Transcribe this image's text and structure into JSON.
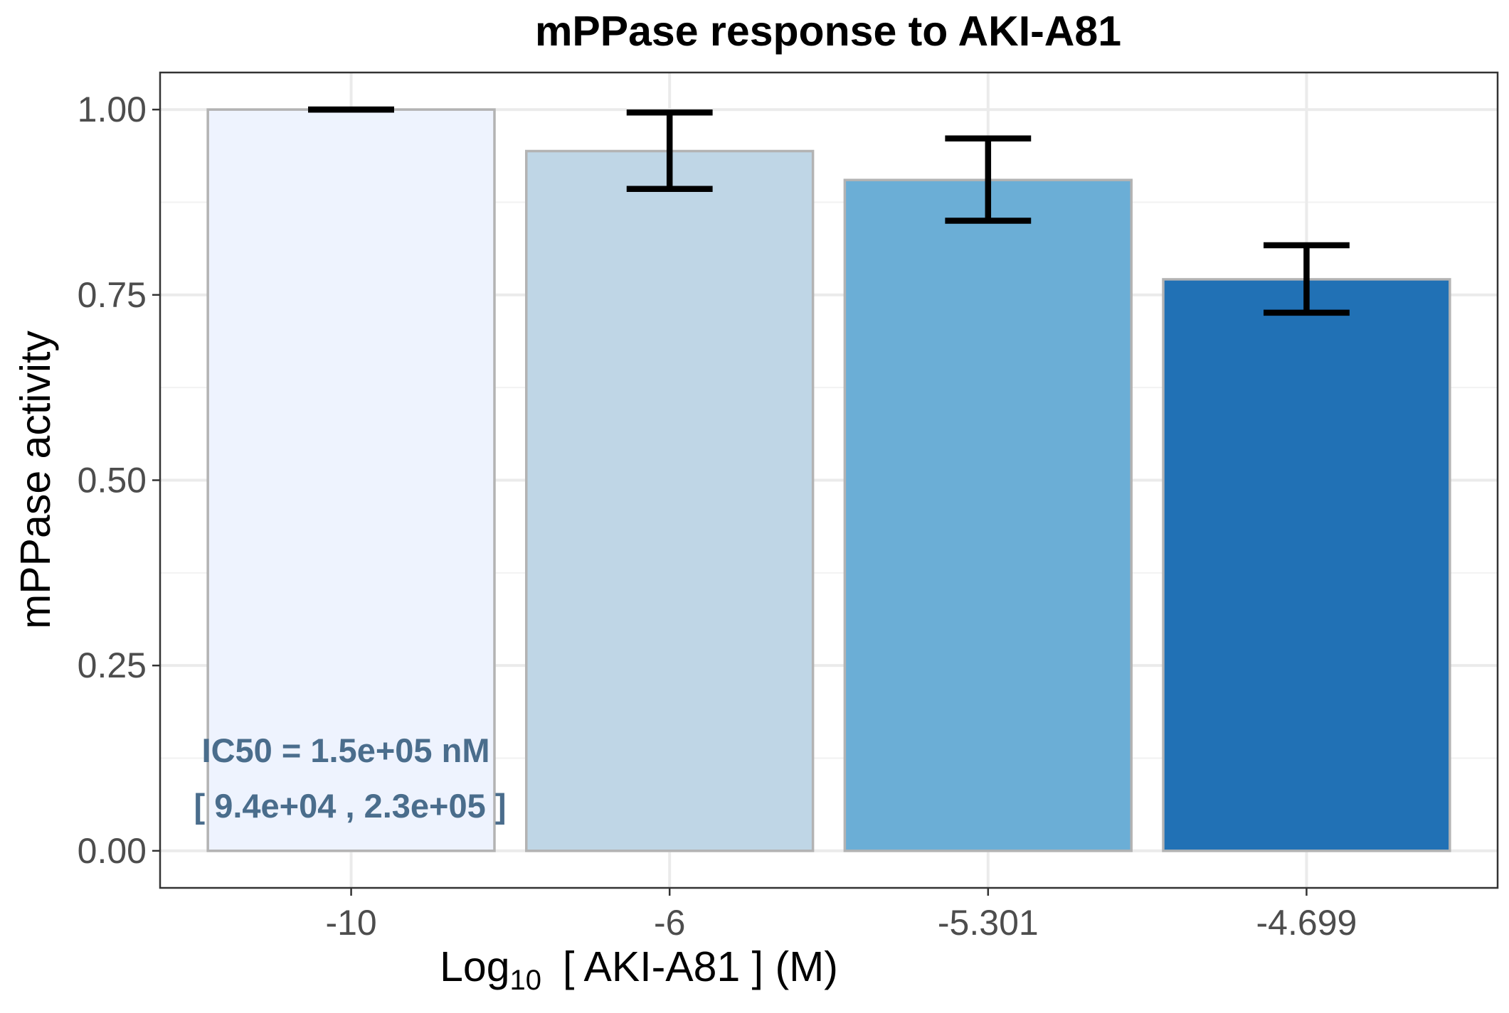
{
  "chart_data": {
    "type": "bar",
    "title": "mPPase response to AKI-A81",
    "xlabel": {
      "prefix": "Log",
      "subscript": "10",
      "suffix": "[ AKI-A81 ] (M)"
    },
    "ylabel": "mPPase activity",
    "categories": [
      "-10",
      "-6",
      "-5.301",
      "-4.699"
    ],
    "values": [
      1.0,
      0.944,
      0.905,
      0.771
    ],
    "error_low": [
      1.0,
      0.893,
      0.85,
      0.726
    ],
    "error_high": [
      1.0,
      0.996,
      0.961,
      0.817
    ],
    "bar_colors": [
      "#eef3fe",
      "#bfd6e6",
      "#6baed6",
      "#2171b5"
    ],
    "bar_outline_color": "#b3b3b3",
    "ylim": [
      -0.05,
      1.05
    ],
    "yticks": [
      0.0,
      0.25,
      0.5,
      0.75,
      1.0
    ],
    "ytick_labels": [
      "0.00",
      "0.25",
      "0.50",
      "0.75",
      "1.00"
    ],
    "grid": true,
    "annotations": {
      "ic50": "IC50 = 1.5e+05 nM",
      "ci": "[ 9.4e+04 , 2.3e+05 ]",
      "color": "#4a6d8c"
    }
  }
}
